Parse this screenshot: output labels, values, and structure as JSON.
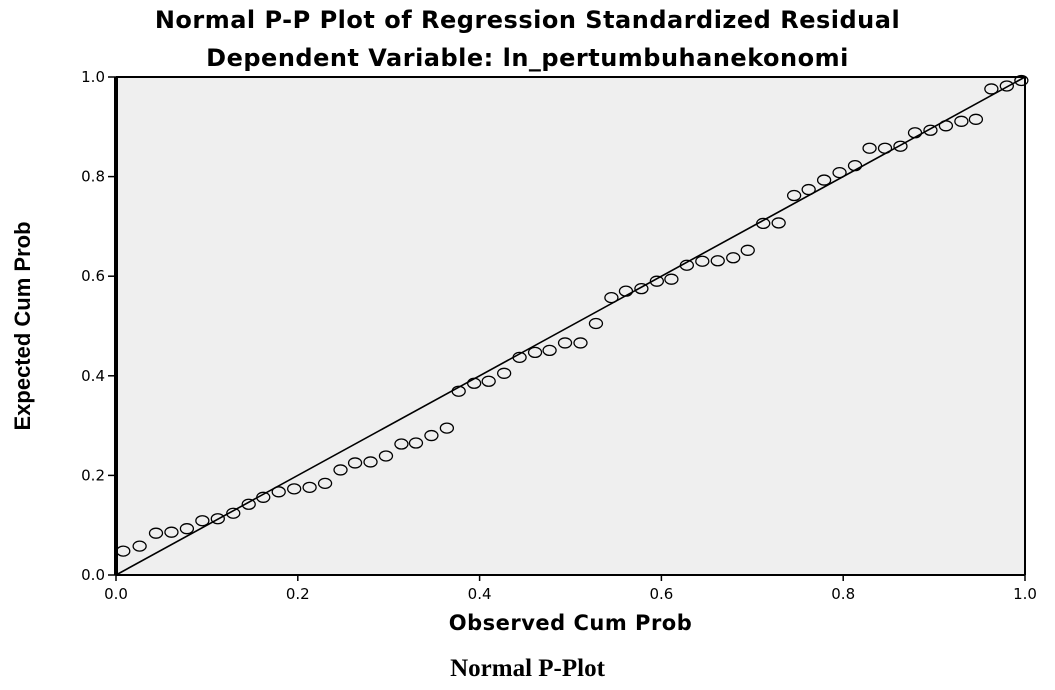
{
  "header": {
    "title": "Normal P-P Plot of Regression Standardized Residual",
    "subtitle": "Dependent Variable: ln_pertumbuhanekonomi"
  },
  "caption": "Normal P-Plot",
  "chart_data": {
    "type": "scatter",
    "title": "Normal P-P Plot of Regression Standardized Residual",
    "subtitle": "Dependent Variable: ln_pertumbuhanekonomi",
    "xlabel": "Observed Cum Prob",
    "ylabel": "Expected Cum Prob",
    "xlim": [
      0.0,
      1.0
    ],
    "ylim": [
      0.0,
      1.0
    ],
    "xticks": [
      "0.0",
      "0.2",
      "0.4",
      "0.6",
      "0.8",
      "1.0"
    ],
    "yticks": [
      "0.0",
      "0.2",
      "0.4",
      "0.6",
      "0.8",
      "1.0"
    ],
    "grid": false,
    "reference_line": [
      [
        0.0,
        0.0
      ],
      [
        1.0,
        1.0
      ]
    ],
    "plot_background": "#efefef",
    "marker_color": "#000000",
    "series": [
      {
        "x": [
          0.008,
          0.026,
          0.044,
          0.061,
          0.078,
          0.095,
          0.112,
          0.129,
          0.146,
          0.162,
          0.179,
          0.196,
          0.213,
          0.23,
          0.247,
          0.263,
          0.28,
          0.297,
          0.314,
          0.33,
          0.347,
          0.364,
          0.377,
          0.394,
          0.41,
          0.427,
          0.444,
          0.461,
          0.477,
          0.494,
          0.511,
          0.528,
          0.545,
          0.561,
          0.578,
          0.595,
          0.611,
          0.628,
          0.645,
          0.662,
          0.679,
          0.695,
          0.712,
          0.729,
          0.746,
          0.762,
          0.779,
          0.796,
          0.813,
          0.829,
          0.846,
          0.863,
          0.879,
          0.896,
          0.913,
          0.93,
          0.946,
          0.963,
          0.98,
          0.996
        ],
        "y": [
          0.048,
          0.058,
          0.084,
          0.086,
          0.093,
          0.109,
          0.113,
          0.124,
          0.142,
          0.156,
          0.167,
          0.173,
          0.176,
          0.184,
          0.211,
          0.225,
          0.227,
          0.239,
          0.263,
          0.265,
          0.28,
          0.295,
          0.369,
          0.385,
          0.389,
          0.405,
          0.437,
          0.447,
          0.451,
          0.466,
          0.466,
          0.505,
          0.557,
          0.57,
          0.575,
          0.59,
          0.594,
          0.622,
          0.63,
          0.631,
          0.637,
          0.652,
          0.706,
          0.707,
          0.762,
          0.774,
          0.793,
          0.808,
          0.822,
          0.857,
          0.857,
          0.861,
          0.888,
          0.893,
          0.902,
          0.911,
          0.915,
          0.976,
          0.982,
          0.993
        ]
      }
    ]
  }
}
